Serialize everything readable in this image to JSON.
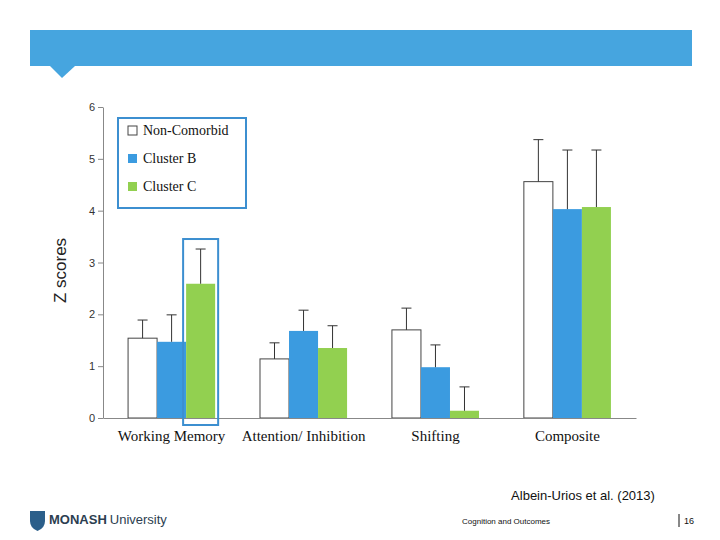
{
  "chart_data": {
    "type": "bar",
    "y_label": "Z scores",
    "categories": [
      "Working Memory",
      "Attention/ Inhibition",
      "Shifting",
      "Composite"
    ],
    "series": [
      {
        "name": "Non-Comorbid",
        "color": "#ffffff",
        "values": [
          1.54,
          1.14,
          1.7,
          4.56
        ],
        "errors": [
          0.35,
          0.31,
          0.42,
          0.81
        ]
      },
      {
        "name": "Cluster B",
        "color": "#3b9be0",
        "values": [
          1.47,
          1.68,
          0.98,
          4.03
        ],
        "errors": [
          0.52,
          0.4,
          0.43,
          1.14
        ]
      },
      {
        "name": "Cluster C",
        "color": "#92d050",
        "values": [
          2.59,
          1.35,
          0.14,
          4.07
        ],
        "errors": [
          0.67,
          0.43,
          0.46,
          1.1
        ]
      }
    ],
    "ylim": [
      0,
      6
    ],
    "yticks": [
      0,
      1,
      2,
      3,
      4,
      5,
      6
    ],
    "legend": "top-left"
  },
  "footer": {
    "citation": "Albein-Urios et al. (2013)",
    "logo_bold": "MONASH",
    "logo_text": "University",
    "section": "Cognition and Outcomes",
    "page": 16
  }
}
